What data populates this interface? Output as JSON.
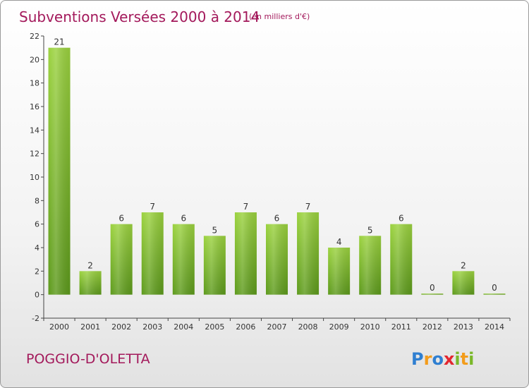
{
  "chart_data": {
    "type": "bar",
    "title": "Subventions Versées 2000 à 2014",
    "subtitle": "(en milliers d'€)",
    "categories": [
      "2000",
      "2001",
      "2002",
      "2003",
      "2004",
      "2005",
      "2006",
      "2007",
      "2008",
      "2009",
      "2010",
      "2011",
      "2012",
      "2013",
      "2014"
    ],
    "values": [
      21,
      2,
      6,
      7,
      6,
      5,
      7,
      6,
      7,
      4,
      5,
      6,
      0,
      2,
      0
    ],
    "ylim": [
      -2,
      22
    ],
    "yticks": [
      -2,
      0,
      2,
      4,
      6,
      8,
      10,
      12,
      14,
      16,
      18,
      20,
      22
    ],
    "xlabel": "",
    "ylabel": "",
    "grid": false,
    "bar_color": "#7fbd2e"
  },
  "place_name": "POGGIO-D'OLETTA",
  "logo": {
    "text": "Proxiti",
    "letters": [
      {
        "char": "P",
        "color": "#2f7fd1"
      },
      {
        "char": "r",
        "color": "#f39c1b"
      },
      {
        "char": "o",
        "color": "#2f7fd1"
      },
      {
        "char": "x",
        "color": "#e3262f"
      },
      {
        "char": "i",
        "color": "#7ab829"
      },
      {
        "char": "t",
        "color": "#f39c1b"
      },
      {
        "char": "i",
        "color": "#7ab829"
      }
    ]
  },
  "colors": {
    "accent": "#a3195b",
    "axis": "#444444"
  }
}
